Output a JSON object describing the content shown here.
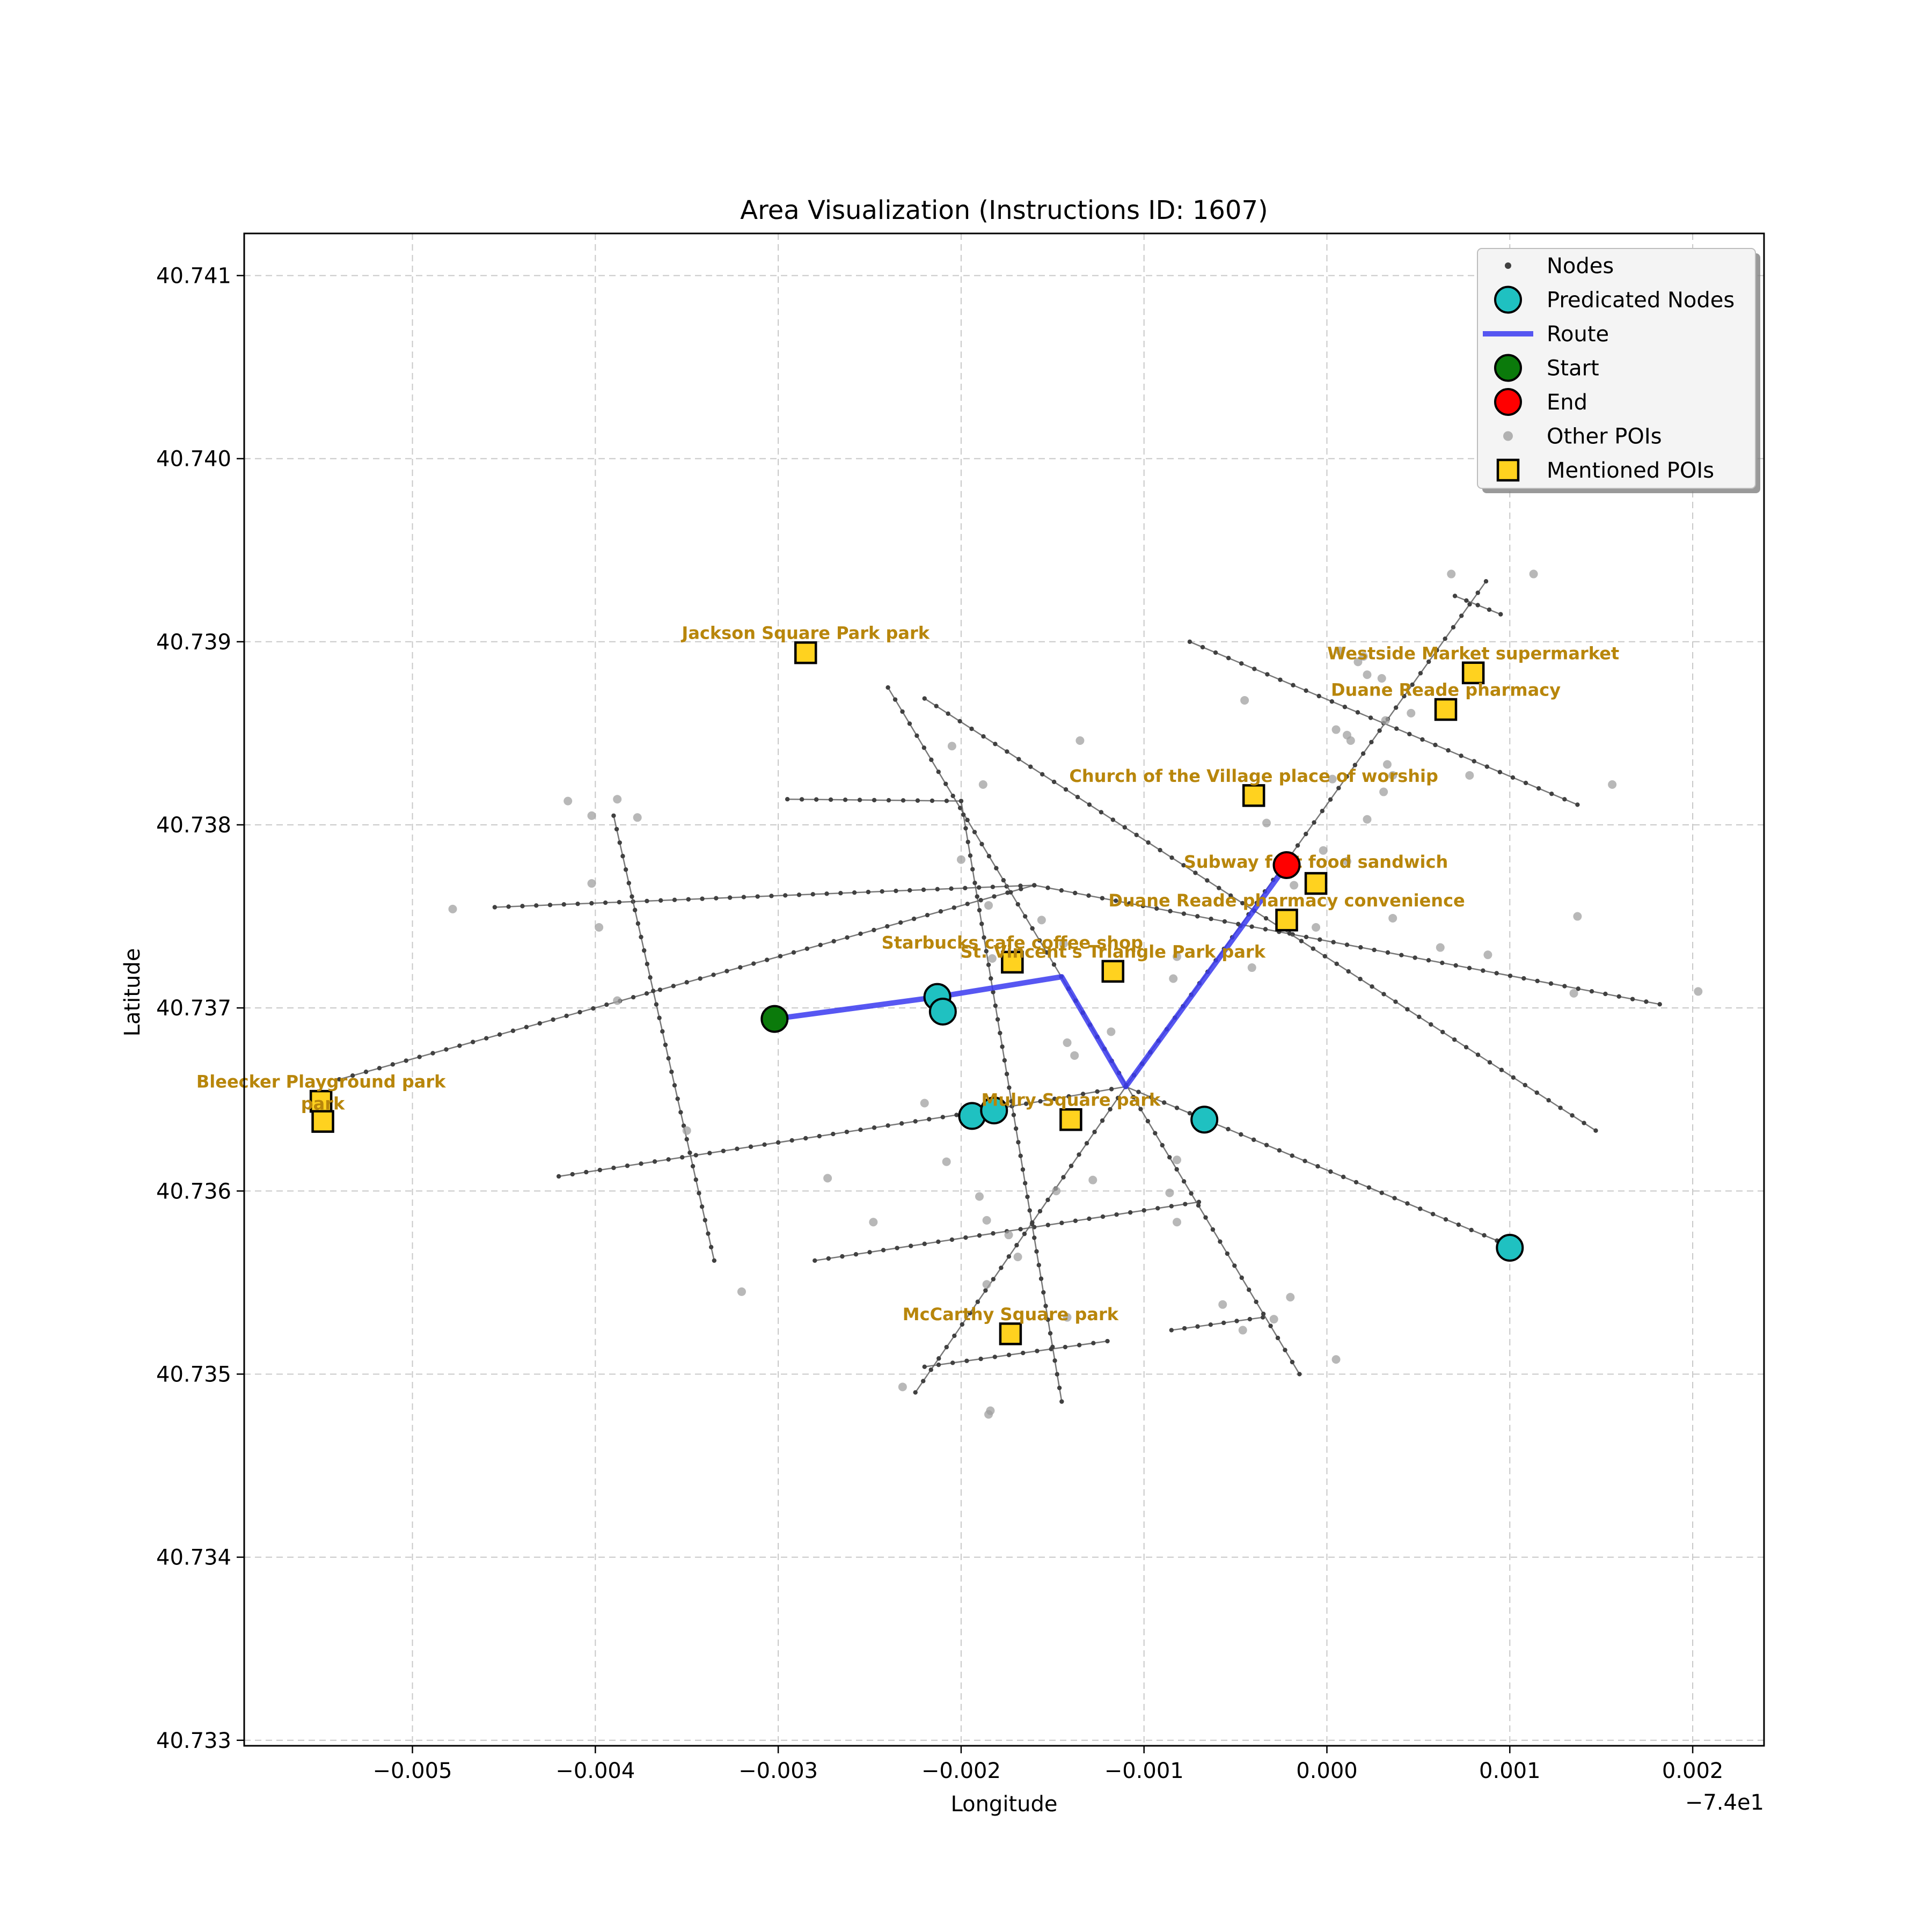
{
  "chart_data": {
    "type": "map-scatter",
    "title": "Area Visualization (Instructions ID: 1607)",
    "xlabel": "Longitude",
    "ylabel": "Latitude",
    "x_offset_label": "−7.4e1",
    "xlim": [
      -0.00592,
      0.00239
    ],
    "ylim": [
      40.73297,
      40.74123
    ],
    "x_ticks": [
      -0.005,
      -0.004,
      -0.003,
      -0.002,
      -0.001,
      0.0,
      0.001,
      0.002
    ],
    "x_tick_labels": [
      "−0.005",
      "−0.004",
      "−0.003",
      "−0.002",
      "−0.001",
      "0.000",
      "0.001",
      "0.002"
    ],
    "y_ticks": [
      40.733,
      40.734,
      40.735,
      40.736,
      40.737,
      40.738,
      40.739,
      40.74,
      40.741
    ],
    "y_tick_labels": [
      "40.733",
      "40.734",
      "40.735",
      "40.736",
      "40.737",
      "40.738",
      "40.739",
      "40.740",
      "40.741"
    ],
    "grid": true,
    "legend_position": "top-right",
    "legend": [
      {
        "label": "Nodes",
        "kind": "node"
      },
      {
        "label": "Predicated Nodes",
        "kind": "pred"
      },
      {
        "label": "Route",
        "kind": "route"
      },
      {
        "label": "Start",
        "kind": "start"
      },
      {
        "label": "End",
        "kind": "end"
      },
      {
        "label": "Other POIs",
        "kind": "otherpoi"
      },
      {
        "label": "Mentioned POIs",
        "kind": "mentioned"
      }
    ],
    "colors": {
      "node": "#404040",
      "edge": "#606060",
      "pred": "#1fc1c1",
      "route": "#3a3af0",
      "start": "#0b7a0b",
      "end": "#ff0000",
      "otherpoi": "#a0a0a0",
      "mentioned": "#ffd21f",
      "label": "#b8860b"
    },
    "streets": [
      [
        [
          -0.00455,
          40.73755
        ],
        [
          -0.0016,
          40.73767
        ]
      ],
      [
        [
          -0.0016,
          40.73767
        ],
        [
          0.00182,
          40.73702
        ]
      ],
      [
        [
          -0.0054,
          40.73661
        ],
        [
          -0.0016,
          40.73767
        ]
      ],
      [
        [
          -0.0042,
          40.73608
        ],
        [
          -0.0018,
          40.73645
        ]
      ],
      [
        [
          -0.0018,
          40.73645
        ],
        [
          -0.0011,
          40.73657
        ]
      ],
      [
        [
          -0.0011,
          40.73657
        ],
        [
          0.001,
          40.7357
        ]
      ],
      [
        [
          -0.0028,
          40.73562
        ],
        [
          -0.0007,
          40.73594
        ]
      ],
      [
        [
          -0.0022,
          40.73504
        ],
        [
          -0.0012,
          40.73518
        ]
      ],
      [
        [
          -0.00085,
          40.73524
        ],
        [
          -0.00035,
          40.73531
        ]
      ],
      [
        [
          -0.00295,
          40.73814
        ],
        [
          -0.002,
          40.73813
        ]
      ],
      [
        [
          -0.0022,
          40.73869
        ],
        [
          0.00147,
          40.73633
        ]
      ],
      [
        [
          -0.00075,
          40.739
        ],
        [
          0.00137,
          40.73811
        ]
      ],
      [
        [
          -0.0039,
          40.73805
        ],
        [
          -0.00335,
          40.73562
        ]
      ],
      [
        [
          -0.0024,
          40.73875
        ],
        [
          -0.00015,
          40.735
        ]
      ],
      [
        [
          -0.002,
          40.73813
        ],
        [
          -0.00145,
          40.73485
        ]
      ],
      [
        [
          -0.00225,
          40.7349
        ],
        [
          -0.0011,
          40.73657
        ]
      ],
      [
        [
          -0.0011,
          40.73657
        ],
        [
          0.00087,
          40.73933
        ]
      ],
      [
        [
          0.0007,
          40.73925
        ],
        [
          0.00095,
          40.73915
        ]
      ]
    ],
    "other_pois": [
      [
        -0.00415,
        40.73813
      ],
      [
        -0.00402,
        40.73805
      ],
      [
        -0.00388,
        40.73814
      ],
      [
        -0.00377,
        40.73804
      ],
      [
        -0.00478,
        40.73754
      ],
      [
        -0.00398,
        40.73744
      ],
      [
        -0.00388,
        40.73704
      ],
      [
        -0.00402,
        40.73768
      ],
      [
        -0.0035,
        40.73633
      ],
      [
        -0.0032,
        40.73545
      ],
      [
        -0.00273,
        40.73607
      ],
      [
        -0.00248,
        40.73583
      ],
      [
        -0.00205,
        40.73843
      ],
      [
        -0.00188,
        40.73822
      ],
      [
        -0.002,
        40.73781
      ],
      [
        -0.00185,
        40.73756
      ],
      [
        -0.00156,
        40.73748
      ],
      [
        -0.00144,
        40.73735
      ],
      [
        -0.00172,
        40.73729
      ],
      [
        -0.00135,
        40.73846
      ],
      [
        -0.00142,
        40.73681
      ],
      [
        -0.00138,
        40.73674
      ],
      [
        -0.00118,
        40.73687
      ],
      [
        -0.00183,
        40.73727
      ],
      [
        -0.00209,
        40.73697
      ],
      [
        -0.0022,
        40.73648
      ],
      [
        -0.00208,
        40.73616
      ],
      [
        -0.0019,
        40.73597
      ],
      [
        -0.00186,
        40.73584
      ],
      [
        -0.00174,
        40.73576
      ],
      [
        -0.00186,
        40.73549
      ],
      [
        -0.00169,
        40.73564
      ],
      [
        -0.00148,
        40.736
      ],
      [
        -0.00128,
        40.73606
      ],
      [
        -0.00086,
        40.73599
      ],
      [
        -0.00082,
        40.73583
      ],
      [
        -0.00082,
        40.73617
      ],
      [
        -0.00057,
        40.73538
      ],
      [
        -0.00046,
        40.73524
      ],
      [
        -0.00029,
        40.7353
      ],
      [
        -0.0002,
        40.73542
      ],
      [
        5e-05,
        40.73508
      ],
      [
        -0.00184,
        40.7348
      ],
      [
        -0.00185,
        40.73478
      ],
      [
        -0.00232,
        40.73493
      ],
      [
        -0.00142,
        40.73531
      ],
      [
        -0.00045,
        40.73868
      ],
      [
        -0.00033,
        40.73801
      ],
      [
        -0.00018,
        40.73767
      ],
      [
        -6e-05,
        40.73744
      ],
      [
        3e-05,
        40.73825
      ],
      [
        0.00013,
        40.73846
      ],
      [
        5e-05,
        40.73852
      ],
      [
        0.00011,
        40.73849
      ],
      [
        0.00022,
        40.73882
      ],
      [
        0.0003,
        40.7388
      ],
      [
        0.00017,
        40.73889
      ],
      [
        7e-05,
        40.73895
      ],
      [
        0.0002,
        40.73892
      ],
      [
        0.00032,
        40.73857
      ],
      [
        0.00046,
        40.73861
      ],
      [
        0.00033,
        40.73833
      ],
      [
        0.00036,
        40.73827
      ],
      [
        0.00031,
        40.73818
      ],
      [
        0.00022,
        40.73803
      ],
      [
        0.00036,
        40.73749
      ],
      [
        0.00062,
        40.73733
      ],
      [
        0.00088,
        40.73729
      ],
      [
        0.00068,
        40.73937
      ],
      [
        0.00113,
        40.73937
      ],
      [
        0.00078,
        40.73827
      ],
      [
        0.00156,
        40.73822
      ],
      [
        0.00137,
        40.7375
      ],
      [
        0.00135,
        40.73708
      ],
      [
        0.00203,
        40.73709
      ],
      [
        -0.00084,
        40.73716
      ],
      [
        -0.00041,
        40.73722
      ],
      [
        -0.00082,
        40.73728
      ],
      [
        -2e-05,
        40.73786
      ],
      [
        0.00011,
        40.7378
      ]
    ],
    "predicted_nodes": [
      [
        -0.00213,
        40.73706
      ],
      [
        -0.0021,
        40.73698
      ],
      [
        -0.00194,
        40.73641
      ],
      [
        -0.00182,
        40.73644
      ],
      [
        -0.00067,
        40.73639
      ],
      [
        0.001,
        40.73569
      ]
    ],
    "route": [
      [
        -0.00302,
        40.73694
      ],
      [
        -0.00213,
        40.73706
      ],
      [
        -0.00145,
        40.73717
      ],
      [
        -0.0011,
        40.73657
      ],
      [
        -0.00022,
        40.73778
      ]
    ],
    "start": [
      -0.00302,
      40.73694
    ],
    "end": [
      -0.00022,
      40.73778
    ],
    "mentioned_pois": [
      {
        "x": -0.00285,
        "y": 40.73894,
        "label": "Jackson Square Park   park",
        "lx": -0.00285,
        "ly": 40.73905
      },
      {
        "x": 0.0008,
        "y": 40.73883,
        "label": "Westside Market     supermarket",
        "lx": 0.0008,
        "ly": 40.73894
      },
      {
        "x": 0.00065,
        "y": 40.73863,
        "label": "Duane Reade pharmacy",
        "lx": 0.00065,
        "ly": 40.73874
      },
      {
        "x": -0.0004,
        "y": 40.73816,
        "label": "Church of the Village place of worship",
        "lx": -0.0004,
        "ly": 40.73827
      },
      {
        "x": -6e-05,
        "y": 40.73768,
        "label": "Subway fast food sandwich",
        "lx": -6e-05,
        "ly": 40.7378
      },
      {
        "x": -0.00022,
        "y": 40.73748,
        "label": "Duane Reade pharmacy    convenience",
        "lx": -0.00022,
        "ly": 40.73759
      },
      {
        "x": -0.00172,
        "y": 40.73725,
        "label": "Starbucks cafe coffee shop",
        "lx": -0.00172,
        "ly": 40.73736
      },
      {
        "x": -0.00117,
        "y": 40.7372,
        "label": "St. Vincent's Triangle Park   park",
        "lx": -0.00117,
        "ly": 40.73731
      },
      {
        "x": -0.0055,
        "y": 40.73649,
        "label": "Bleecker Playground   park",
        "lx": -0.0055,
        "ly": 40.7366
      },
      {
        "x": -0.00549,
        "y": 40.73638,
        "label": "park",
        "lx": -0.00549,
        "ly": 40.73648
      },
      {
        "x": -0.0014,
        "y": 40.73639,
        "label": "Mulry Square   park",
        "lx": -0.0014,
        "ly": 40.7365
      },
      {
        "x": -0.00173,
        "y": 40.73522,
        "label": "McCarthy Square   park",
        "lx": -0.00173,
        "ly": 40.73533
      }
    ]
  }
}
